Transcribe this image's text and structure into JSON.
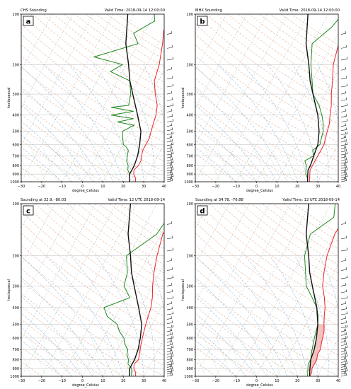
{
  "chart_data": [
    {
      "type": "line",
      "panel_letter": "a",
      "title_left": "CHS Sounding",
      "title_right": "Valid Time: 2018-09-14 12:00:00",
      "xlabel": "degree_Celsius",
      "ylabel": "hectopascal",
      "xlim": [
        -30,
        40
      ],
      "ylim": [
        1000,
        100
      ],
      "x_ticks": [
        "−30",
        "−20",
        "−10",
        "0",
        "10",
        "20",
        "30",
        "40"
      ],
      "y_ticks": [
        "100",
        "200",
        "300",
        "400",
        "500",
        "600",
        "700",
        "800",
        "900",
        "1000"
      ],
      "series": [
        {
          "color": "#e8232a",
          "p": [
            1000,
            950,
            900,
            850,
            800,
            750,
            700,
            650,
            600,
            550,
            500,
            450,
            400,
            350,
            300,
            250,
            200,
            150,
            125,
            100
          ],
          "x": [
            26,
            25,
            23,
            22,
            23,
            23,
            22,
            21,
            21,
            21,
            20,
            19,
            18,
            16,
            12,
            8,
            6,
            2,
            -1,
            -2
          ]
        },
        {
          "color": "#1e8a1e",
          "p": [
            1000,
            950,
            900,
            850,
            800,
            750,
            700,
            650,
            620,
            600,
            550,
            500,
            460,
            440,
            420,
            400,
            380,
            360,
            350,
            300,
            250,
            220,
            200,
            180,
            150,
            130,
            110,
            100
          ],
          "x": [
            23,
            22,
            21,
            19,
            18,
            16,
            15,
            14,
            12,
            10,
            8,
            6,
            10,
            1,
            8,
            -4,
            6,
            -6,
            2,
            0,
            -4,
            -16,
            -12,
            -28,
            -10,
            -15,
            -8,
            -10
          ]
        },
        {
          "color": "#111111",
          "p": [
            1000,
            950,
            900,
            850,
            800,
            700,
            600,
            500,
            400,
            300,
            250,
            200,
            150,
            100
          ],
          "x": [
            23,
            22,
            21,
            21,
            21,
            20,
            18,
            15,
            9,
            1,
            -4,
            -9,
            -16,
            -23
          ]
        }
      ]
    },
    {
      "type": "line",
      "panel_letter": "b",
      "title_left": "MHX Sounding",
      "title_right": "Valid Time: 2018-09-14 12:00:00",
      "xlabel": "degree_Celsius",
      "ylabel": "hectopascal",
      "xlim": [
        -30,
        40
      ],
      "ylim": [
        1000,
        100
      ],
      "x_ticks": [
        "−30",
        "−20",
        "−10",
        "0",
        "10",
        "20",
        "30",
        "40"
      ],
      "y_ticks": [
        "100",
        "200",
        "300",
        "400",
        "500",
        "600",
        "700",
        "800",
        "900",
        "1000"
      ],
      "series": [
        {
          "color": "#e8232a",
          "p": [
            1000,
            950,
            900,
            850,
            800,
            750,
            700,
            650,
            600,
            550,
            500,
            450,
            400,
            350,
            300,
            250,
            200,
            150,
            120,
            100
          ],
          "x": [
            26,
            25,
            24,
            23,
            23,
            23,
            23,
            23,
            23,
            22,
            21,
            20,
            18,
            16,
            13,
            10,
            6,
            3,
            -1,
            4
          ]
        },
        {
          "color": "#1e8a1e",
          "p": [
            1000,
            950,
            900,
            850,
            800,
            750,
            700,
            650,
            600,
            550,
            500,
            450,
            400,
            350,
            300,
            250,
            200,
            150,
            120,
            100
          ],
          "x": [
            25,
            24,
            22,
            21,
            20,
            18,
            21,
            19,
            21,
            20,
            19,
            17,
            14,
            10,
            4,
            0,
            -5,
            -10,
            -5,
            -3
          ]
        },
        {
          "color": "#111111",
          "p": [
            1000,
            950,
            900,
            850,
            800,
            700,
            600,
            500,
            400,
            300,
            250,
            200,
            150,
            100
          ],
          "x": [
            25,
            24,
            23,
            22,
            22,
            21,
            20,
            17,
            12,
            4,
            -1,
            -6,
            -13,
            -20
          ]
        }
      ]
    },
    {
      "type": "line",
      "panel_letter": "c",
      "title_left": "Sounding at 32.9, -80.03",
      "title_right": "Valid Time: 12 UTC 2018-09-14",
      "xlabel": "degree_Celsius",
      "ylabel": "hectopascal",
      "xlim": [
        -30,
        40
      ],
      "ylim": [
        1000,
        100
      ],
      "x_ticks": [
        "−30",
        "−20",
        "−10",
        "0",
        "10",
        "20",
        "30",
        "40"
      ],
      "y_ticks": [
        "100",
        "200",
        "300",
        "400",
        "500",
        "600",
        "700",
        "800",
        "900",
        "1000"
      ],
      "series": [
        {
          "color": "#e8232a",
          "p": [
            1000,
            950,
            900,
            850,
            800,
            750,
            700,
            650,
            600,
            550,
            500,
            450,
            400,
            350,
            300,
            250,
            200,
            150,
            100
          ],
          "x": [
            26,
            25,
            23,
            22,
            23,
            22,
            21,
            20,
            19,
            18,
            17,
            16,
            15,
            13,
            10,
            7,
            4,
            1,
            3
          ]
        },
        {
          "color": "#1e8a1e",
          "p": [
            1000,
            950,
            900,
            850,
            800,
            750,
            700,
            650,
            600,
            550,
            500,
            450,
            400,
            350,
            300,
            250,
            200,
            150,
            100
          ],
          "x": [
            24,
            23,
            22,
            19,
            18,
            16,
            15,
            12,
            10,
            6,
            3,
            -4,
            -8,
            2,
            -4,
            -6,
            -11,
            -2,
            0
          ]
        },
        {
          "color": "#111111",
          "p": [
            1000,
            950,
            900,
            850,
            800,
            700,
            600,
            500,
            400,
            300,
            250,
            200,
            150,
            100
          ],
          "x": [
            23,
            22,
            21,
            21,
            21,
            20,
            18,
            15,
            9,
            1,
            -4,
            -9,
            -16,
            -23
          ]
        }
      ]
    },
    {
      "type": "line",
      "panel_letter": "d",
      "title_left": "Sounding at 34.78, -76.88",
      "title_right": "Valid Time: 12 UTC 2018-09-14",
      "xlabel": "degree_Celsius",
      "ylabel": "hectopascal",
      "xlim": [
        -30,
        40
      ],
      "ylim": [
        1000,
        100
      ],
      "x_ticks": [
        "−30",
        "−20",
        "−10",
        "0",
        "10",
        "20",
        "30",
        "40"
      ],
      "y_ticks": [
        "100",
        "200",
        "300",
        "400",
        "500",
        "600",
        "700",
        "800",
        "900",
        "1000"
      ],
      "series": [
        {
          "color": "#e8232a",
          "p": [
            1000,
            950,
            900,
            850,
            800,
            750,
            700,
            650,
            600,
            550,
            500,
            450,
            400,
            350,
            300,
            250,
            200,
            150,
            100
          ],
          "x": [
            26,
            26,
            25,
            25,
            25,
            24,
            24,
            23,
            22,
            21,
            19,
            17,
            15,
            12,
            8,
            5,
            2,
            0,
            1
          ]
        },
        {
          "color": "#1e8a1e",
          "p": [
            1000,
            950,
            900,
            850,
            800,
            750,
            700,
            650,
            600,
            550,
            500,
            450,
            400,
            350,
            300,
            250,
            200,
            150,
            120,
            100
          ],
          "x": [
            25,
            24,
            23,
            22,
            22,
            21,
            20,
            19,
            18,
            17,
            16,
            14,
            11,
            6,
            0,
            -4,
            -9,
            -12,
            -5,
            -8
          ]
        },
        {
          "color": "#111111",
          "p": [
            1000,
            950,
            900,
            850,
            800,
            700,
            600,
            500,
            400,
            300,
            250,
            200,
            150,
            100
          ],
          "x": [
            26,
            25,
            24,
            23,
            22,
            21,
            19,
            16,
            11,
            3,
            -2,
            -7,
            -14,
            -21
          ]
        }
      ],
      "cape_shading": {
        "color": "#f4b6b6",
        "p": [
          940,
          900,
          850,
          800,
          750,
          700,
          650,
          600,
          550,
          500
        ],
        "x_env": [
          25,
          25,
          25,
          25,
          24,
          24,
          23,
          22,
          21,
          19
        ],
        "x_parcel": [
          24,
          23.5,
          23,
          22,
          21.5,
          21,
          20,
          19,
          17.5,
          16
        ]
      }
    }
  ]
}
